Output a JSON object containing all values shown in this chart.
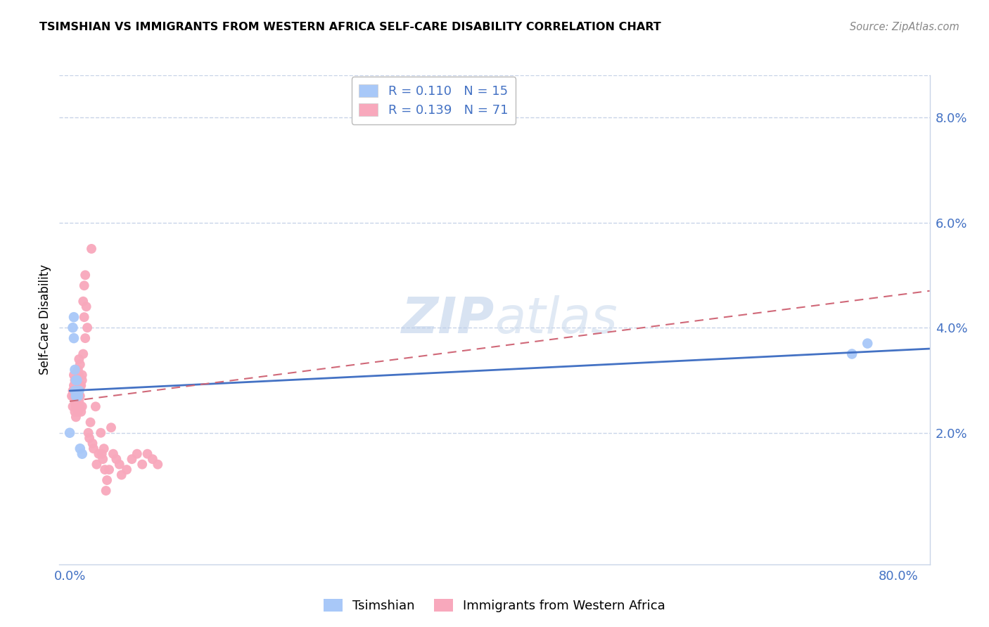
{
  "title": "TSIMSHIAN VS IMMIGRANTS FROM WESTERN AFRICA SELF-CARE DISABILITY CORRELATION CHART",
  "source": "Source: ZipAtlas.com",
  "ylabel": "Self-Care Disability",
  "xlim": [
    -0.01,
    0.83
  ],
  "ylim": [
    -0.005,
    0.088
  ],
  "legend_label_1": "R = 0.110   N = 15",
  "legend_label_2": "R = 0.139   N = 71",
  "tsimshian_color": "#a8c8f8",
  "western_africa_color": "#f8a8bc",
  "tsimshian_line_color": "#4472c4",
  "western_africa_line_color": "#d06878",
  "watermark_color": "#dce8f8",
  "background_color": "#ffffff",
  "grid_color": "#c8d4e8",
  "tick_color": "#4472c4",
  "title_color": "#000000",
  "source_color": "#888888",
  "tsimshian_x": [
    0.0,
    0.003,
    0.004,
    0.004,
    0.005,
    0.005,
    0.006,
    0.006,
    0.007,
    0.008,
    0.009,
    0.01,
    0.012,
    0.755,
    0.77
  ],
  "tsimshian_y": [
    0.02,
    0.04,
    0.038,
    0.042,
    0.032,
    0.028,
    0.03,
    0.027,
    0.03,
    0.027,
    0.028,
    0.017,
    0.016,
    0.035,
    0.037
  ],
  "western_africa_x": [
    0.002,
    0.003,
    0.003,
    0.004,
    0.004,
    0.004,
    0.005,
    0.005,
    0.005,
    0.005,
    0.006,
    0.006,
    0.006,
    0.006,
    0.007,
    0.007,
    0.007,
    0.007,
    0.008,
    0.008,
    0.008,
    0.009,
    0.009,
    0.009,
    0.009,
    0.01,
    0.01,
    0.01,
    0.01,
    0.011,
    0.011,
    0.012,
    0.012,
    0.012,
    0.013,
    0.013,
    0.014,
    0.014,
    0.015,
    0.015,
    0.016,
    0.017,
    0.018,
    0.019,
    0.02,
    0.021,
    0.022,
    0.023,
    0.025,
    0.026,
    0.028,
    0.03,
    0.031,
    0.032,
    0.033,
    0.034,
    0.035,
    0.036,
    0.038,
    0.04,
    0.042,
    0.045,
    0.048,
    0.05,
    0.055,
    0.06,
    0.065,
    0.07,
    0.075,
    0.08,
    0.085
  ],
  "western_africa_y": [
    0.027,
    0.028,
    0.025,
    0.027,
    0.029,
    0.031,
    0.024,
    0.026,
    0.028,
    0.03,
    0.023,
    0.025,
    0.027,
    0.028,
    0.025,
    0.026,
    0.027,
    0.03,
    0.024,
    0.027,
    0.032,
    0.026,
    0.027,
    0.031,
    0.034,
    0.025,
    0.027,
    0.029,
    0.033,
    0.024,
    0.029,
    0.031,
    0.025,
    0.03,
    0.035,
    0.045,
    0.048,
    0.042,
    0.05,
    0.038,
    0.044,
    0.04,
    0.02,
    0.019,
    0.022,
    0.055,
    0.018,
    0.017,
    0.025,
    0.014,
    0.016,
    0.02,
    0.016,
    0.015,
    0.017,
    0.013,
    0.009,
    0.011,
    0.013,
    0.021,
    0.016,
    0.015,
    0.014,
    0.012,
    0.013,
    0.015,
    0.016,
    0.014,
    0.016,
    0.015,
    0.014
  ],
  "ts_trend_x": [
    0.0,
    0.83
  ],
  "ts_trend_y": [
    0.028,
    0.036
  ],
  "wa_trend_x": [
    0.0,
    0.83
  ],
  "wa_trend_y": [
    0.026,
    0.047
  ]
}
